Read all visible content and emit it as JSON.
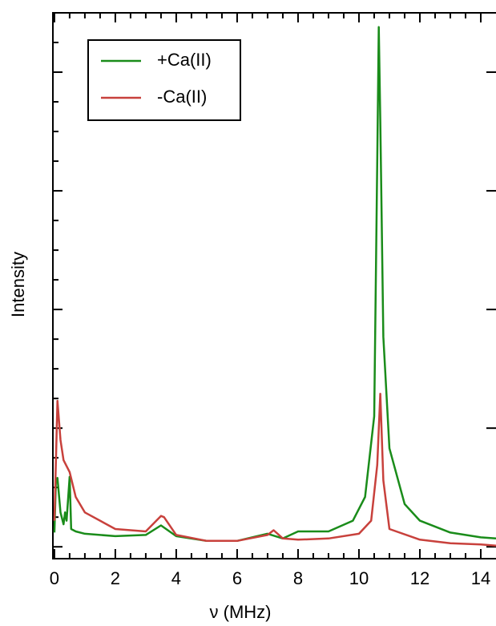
{
  "chart_data": {
    "type": "line",
    "x_label": "ν (MHz)",
    "y_label": "Intensity",
    "xlim": [
      -0.05,
      14.5
    ],
    "xticks": [
      0,
      2,
      4,
      6,
      8,
      10,
      12,
      14
    ],
    "ylim": [
      -0.1,
      4.5
    ],
    "yticks": [
      0,
      1,
      2,
      3,
      4
    ],
    "legend": "upper left",
    "series": [
      {
        "name": "+Ca(II)",
        "color": "#1a8c1a",
        "x": [
          0,
          0.05,
          0.1,
          0.2,
          0.3,
          0.35,
          0.4,
          0.5,
          0.55,
          0.7,
          1,
          2,
          3,
          3.5,
          4,
          5,
          6,
          7,
          7.5,
          8,
          9,
          9.8,
          10.2,
          10.5,
          10.6,
          10.65,
          10.7,
          10.8,
          11,
          11.5,
          12,
          13,
          14,
          14.5
        ],
        "values": [
          0.12,
          0.56,
          0.58,
          0.29,
          0.19,
          0.29,
          0.22,
          0.59,
          0.15,
          0.13,
          0.11,
          0.09,
          0.1,
          0.18,
          0.09,
          0.05,
          0.05,
          0.11,
          0.07,
          0.13,
          0.13,
          0.22,
          0.42,
          1.1,
          3.25,
          4.38,
          3.59,
          1.77,
          0.83,
          0.36,
          0.22,
          0.12,
          0.08,
          0.07
        ]
      },
      {
        "name": "-Ca(II)",
        "color": "#c8413c",
        "x": [
          0,
          0.1,
          0.2,
          0.3,
          0.5,
          0.7,
          1,
          2,
          3,
          3.5,
          3.6,
          4,
          5,
          6,
          7,
          7.2,
          7.5,
          8,
          9,
          10,
          10.4,
          10.6,
          10.7,
          10.8,
          11,
          12,
          13,
          14,
          14.5
        ],
        "values": [
          0.22,
          1.23,
          0.9,
          0.73,
          0.63,
          0.42,
          0.29,
          0.15,
          0.13,
          0.26,
          0.25,
          0.1,
          0.05,
          0.05,
          0.1,
          0.14,
          0.07,
          0.06,
          0.07,
          0.11,
          0.22,
          0.69,
          1.29,
          0.56,
          0.15,
          0.06,
          0.03,
          0.02,
          0.01
        ]
      }
    ]
  }
}
